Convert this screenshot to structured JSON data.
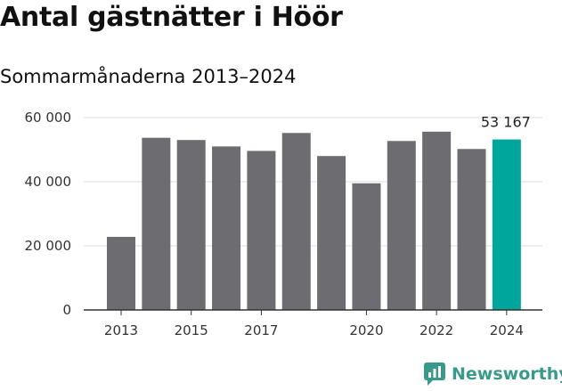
{
  "header": {
    "title": "Antal gästnätter i Höör",
    "subtitle": "Sommarmånaderna 2013–2024"
  },
  "brand": {
    "name": "Newsworthy",
    "color": "#3a9a8a"
  },
  "colors": {
    "bar": "#6d6c71",
    "highlight": "#00a59b",
    "grid": "#dddddd",
    "axis": "#333333"
  },
  "chart_data": {
    "type": "bar",
    "title": "Antal gästnätter i Höör",
    "subtitle": "Sommarmånaderna 2013–2024",
    "categories": [
      "2013",
      "2014",
      "2015",
      "2016",
      "2017",
      "2018",
      "2019",
      "2020",
      "2021",
      "2022",
      "2023",
      "2024"
    ],
    "values": [
      22800,
      53700,
      53000,
      51000,
      49600,
      55200,
      48000,
      39500,
      52700,
      55600,
      50200,
      53167
    ],
    "x_tick_labels": [
      "2013",
      "2015",
      "2017",
      "2020",
      "2022",
      "2024"
    ],
    "y_ticks": [
      0,
      20000,
      40000,
      60000
    ],
    "y_tick_labels": [
      "0",
      "20 000",
      "40 000",
      "60 000"
    ],
    "ylim": [
      0,
      60000
    ],
    "highlight_index": 11,
    "highlight_label": "53 167",
    "grid": true,
    "legend": "none"
  }
}
